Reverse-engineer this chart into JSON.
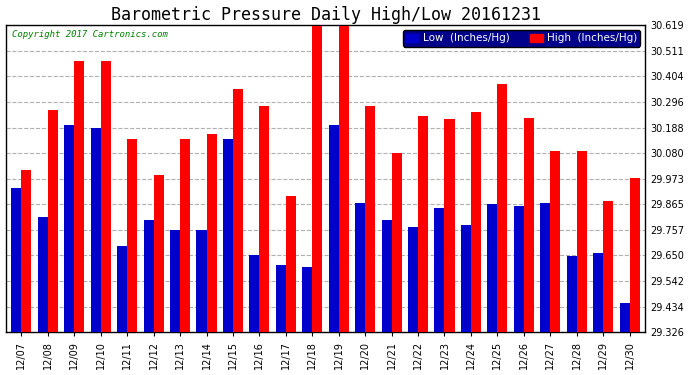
{
  "title": "Barometric Pressure Daily High/Low 20161231",
  "copyright": "Copyright 2017 Cartronics.com",
  "legend_low": "Low  (Inches/Hg)",
  "legend_high": "High  (Inches/Hg)",
  "dates": [
    "12/07",
    "12/08",
    "12/09",
    "12/10",
    "12/11",
    "12/12",
    "12/13",
    "12/14",
    "12/15",
    "12/16",
    "12/17",
    "12/18",
    "12/19",
    "12/20",
    "12/21",
    "12/22",
    "12/23",
    "12/24",
    "12/25",
    "12/26",
    "12/27",
    "12/28",
    "12/29",
    "12/30"
  ],
  "low": [
    29.935,
    29.81,
    30.2,
    30.185,
    29.69,
    29.8,
    29.755,
    29.755,
    30.14,
    29.65,
    29.61,
    29.6,
    30.2,
    29.87,
    29.798,
    29.768,
    29.848,
    29.778,
    29.868,
    29.858,
    29.87,
    29.648,
    29.658,
    29.448
  ],
  "high": [
    30.01,
    30.26,
    30.47,
    30.47,
    30.14,
    29.99,
    30.14,
    30.16,
    30.35,
    30.28,
    29.9,
    30.615,
    30.615,
    30.28,
    30.08,
    30.235,
    30.225,
    30.255,
    30.37,
    30.228,
    30.09,
    30.09,
    29.878,
    29.975
  ],
  "ymin": 29.326,
  "ymax": 30.619,
  "yticks": [
    29.326,
    29.434,
    29.542,
    29.65,
    29.757,
    29.865,
    29.973,
    30.08,
    30.188,
    30.296,
    30.404,
    30.511,
    30.619
  ],
  "bar_width": 0.38,
  "low_color": "#0000cc",
  "high_color": "#ff0000",
  "bg_color": "#ffffff",
  "grid_color": "#b0b0b0",
  "title_fontsize": 12,
  "tick_fontsize": 7,
  "legend_fontsize": 7.5
}
